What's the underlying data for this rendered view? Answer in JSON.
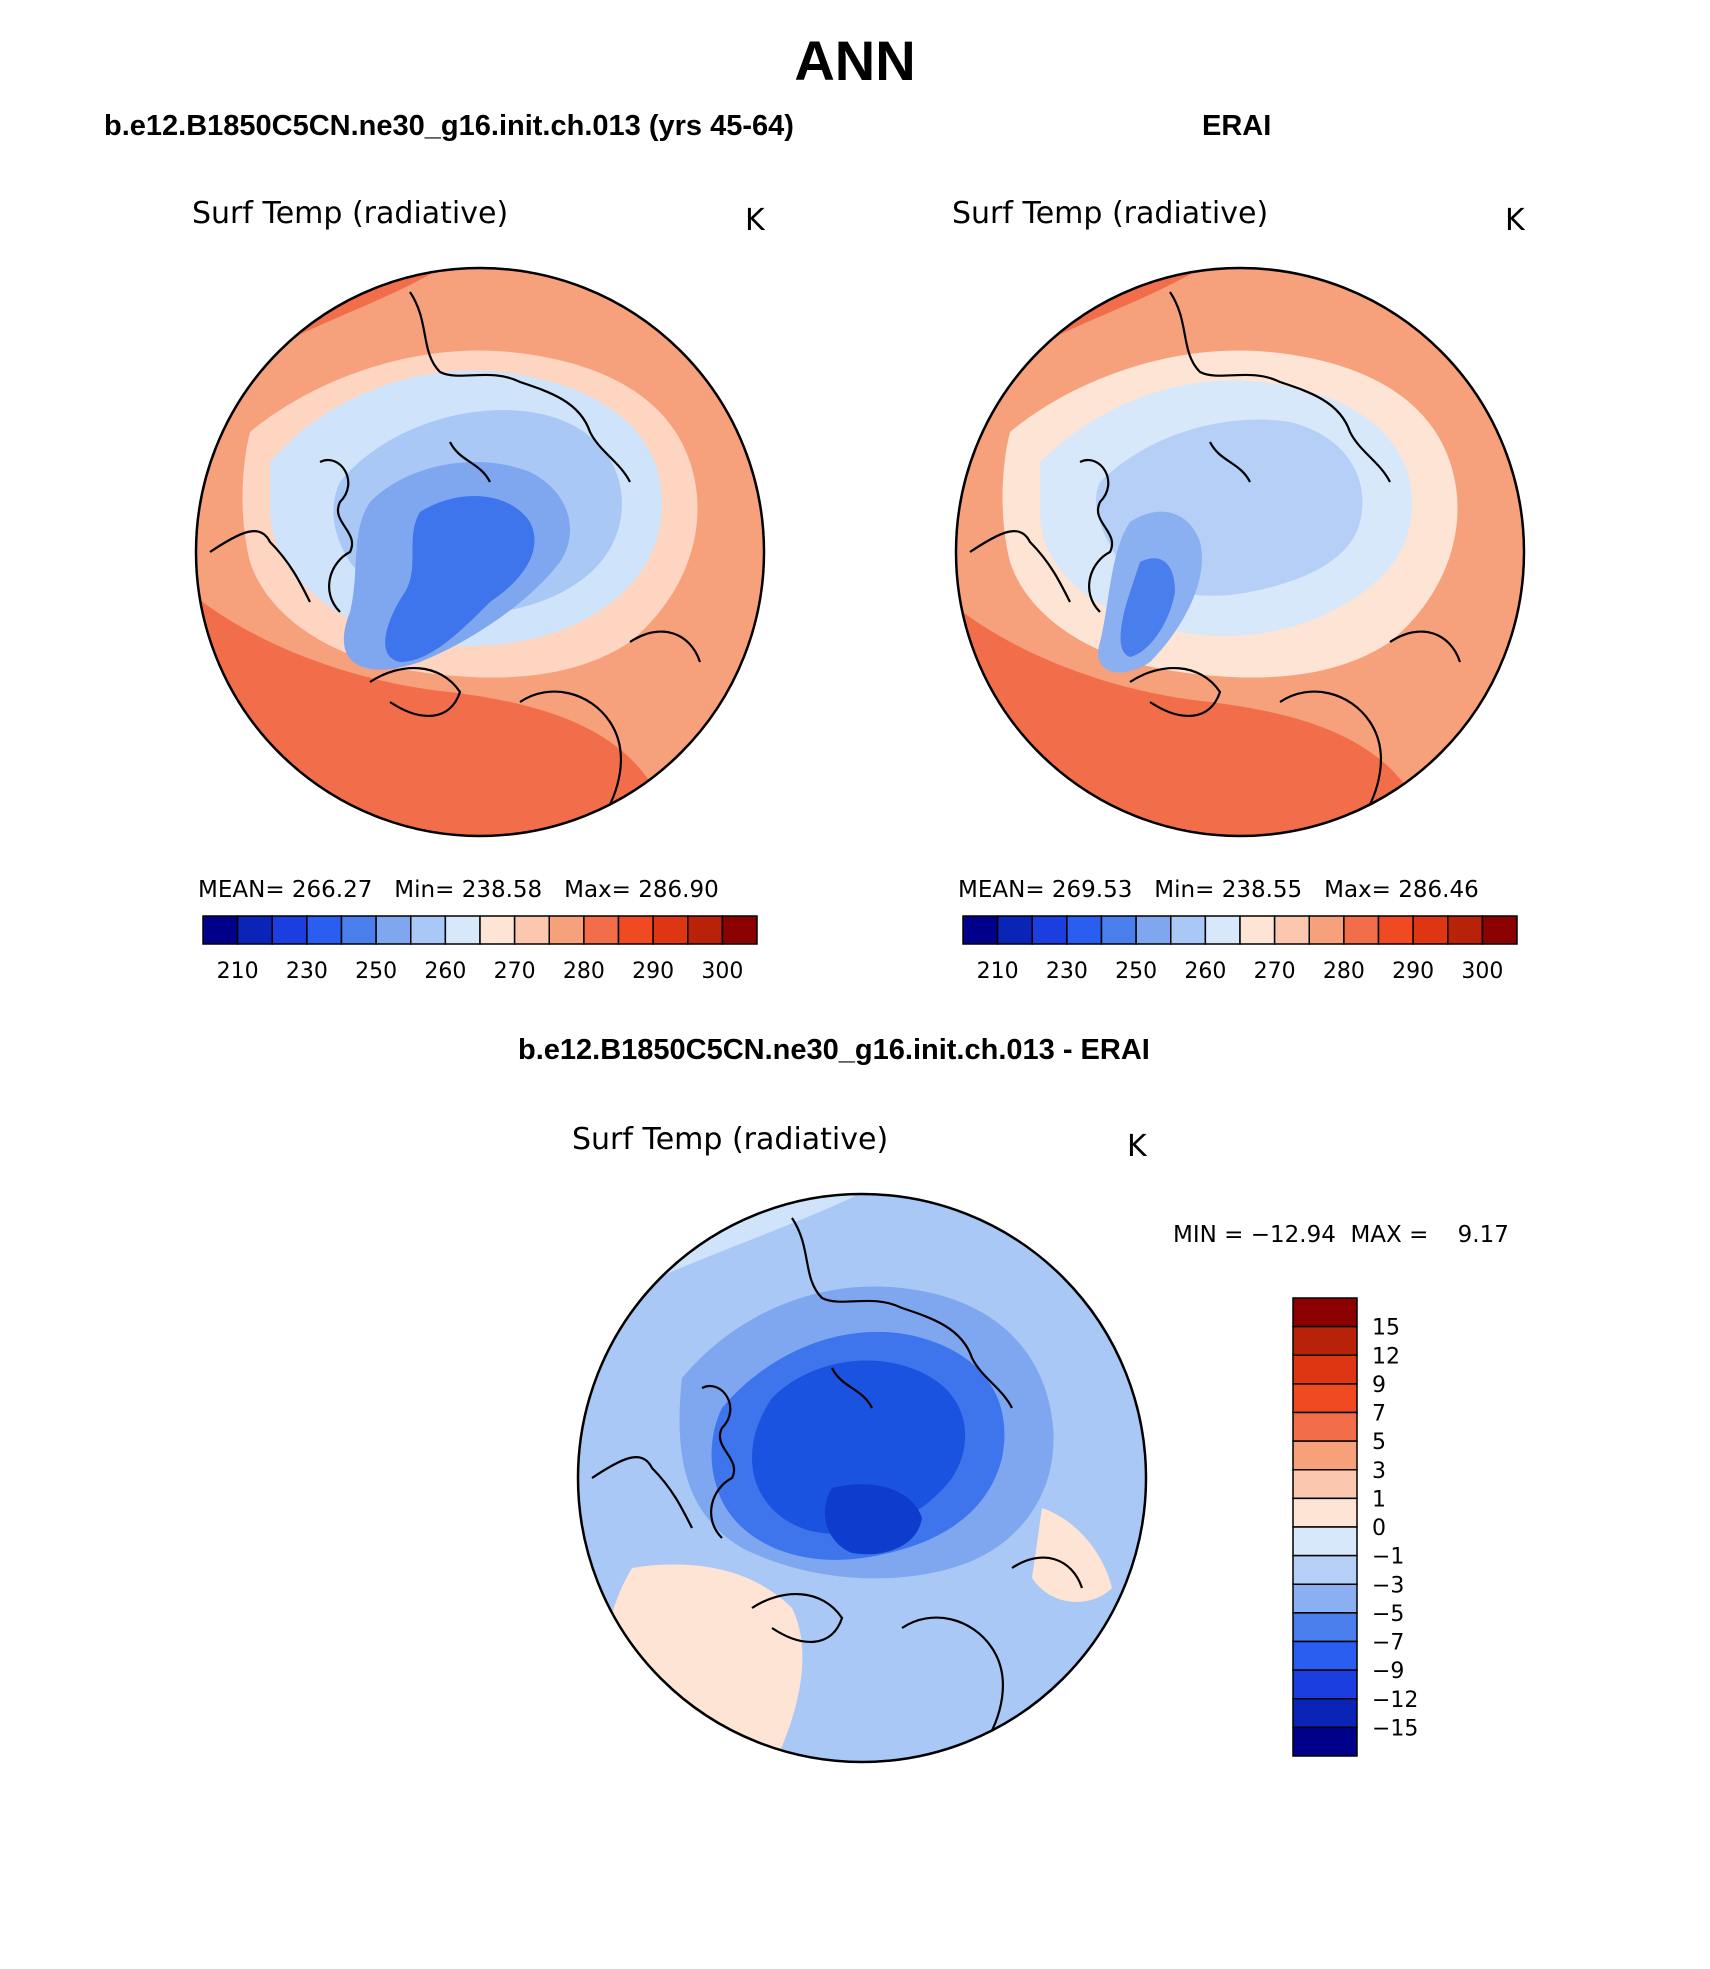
{
  "page_title": "ANN",
  "panels": {
    "model": {
      "title": "b.e12.B1850C5CN.ne30_g16.init.ch.013 (yrs 45-64)",
      "variable": "Surf Temp (radiative)",
      "units": "K",
      "stats": "MEAN= 266.27   Min= 238.58   Max= 286.90",
      "colors": {
        "bg": "#f6a07c",
        "outer": "#f26e4a",
        "ring": "#fdd5c0",
        "cold1": "#cfe3fa",
        "cold2": "#a9c8f6",
        "cold3": "#7fa7f0",
        "cold4": "#3e74ec"
      }
    },
    "obs": {
      "title": "ERAI",
      "variable": "Surf Temp (radiative)",
      "units": "K",
      "stats": "MEAN= 269.53   Min= 238.55   Max= 286.46",
      "colors": {
        "bg": "#f6a07c",
        "outer": "#f26e4a",
        "ring": "#fde4d4",
        "cold1": "#d8e8fb",
        "cold2": "#b5cff7",
        "cold3": "#8ab0f1",
        "cold4": "#4a7eec"
      }
    },
    "diff": {
      "title": "b.e12.B1850C5CN.ne30_g16.init.ch.013 - ERAI",
      "variable": "Surf Temp (radiative)",
      "units": "K",
      "stats": "MIN = −12.94  MAX =    9.17",
      "colors": {
        "bg": "#a9c8f6",
        "outer": "#cfe3fa",
        "ring": "#7fa7f0",
        "cold1": "#3e74ec",
        "cold2": "#1a53e0",
        "cold3": "#0e3ccc",
        "warm": "#fde4d4"
      }
    }
  },
  "colorbar_main": {
    "colors": [
      "#00008b",
      "#0b24b8",
      "#1a3ee0",
      "#2a5ef0",
      "#4a7eec",
      "#7fa7f0",
      "#a9c8f6",
      "#d8e8fb",
      "#fde4d4",
      "#fbc7ae",
      "#f6a07c",
      "#f26e4a",
      "#f04a22",
      "#de3612",
      "#b82208",
      "#8b0000"
    ],
    "ticks": [
      "210",
      "230",
      "250",
      "260",
      "270",
      "280",
      "290",
      "300"
    ]
  },
  "colorbar_diff": {
    "colors": [
      "#8b0000",
      "#b82208",
      "#de3612",
      "#f04a22",
      "#f26e4a",
      "#f6a07c",
      "#fbc7ae",
      "#fde4d4",
      "#d8e8fb",
      "#b5cff7",
      "#8ab0f1",
      "#4a7eec",
      "#2a5ef0",
      "#1a3ee0",
      "#0b24b8",
      "#00008b"
    ],
    "ticks": [
      "15",
      "12",
      "9",
      "7",
      "5",
      "3",
      "1",
      "0",
      "−1",
      "−3",
      "−5",
      "−7",
      "−9",
      "−12",
      "−15"
    ]
  }
}
